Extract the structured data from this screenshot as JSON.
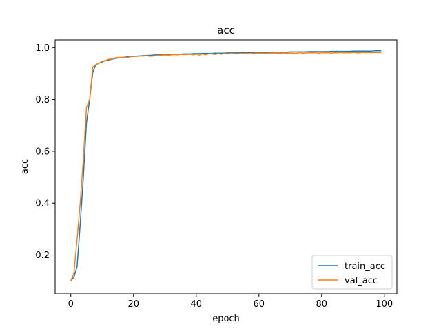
{
  "chart_data": {
    "type": "line",
    "title": "acc",
    "xlabel": "epoch",
    "ylabel": "acc",
    "xlim": [
      -5,
      104
    ],
    "ylim": [
      0.05,
      1.03
    ],
    "xticks": [
      0,
      20,
      40,
      60,
      80,
      100
    ],
    "yticks": [
      0.2,
      0.4,
      0.6,
      0.8,
      1.0
    ],
    "xtick_labels": [
      "0",
      "20",
      "40",
      "60",
      "80",
      "100"
    ],
    "ytick_labels": [
      "0.2",
      "0.4",
      "0.6",
      "0.8",
      "1.0"
    ],
    "grid": false,
    "legend_position": "lower-right",
    "series": [
      {
        "name": "train_acc",
        "color": "#1f77b4",
        "x": [
          0,
          1,
          2,
          3,
          4,
          5,
          6,
          7,
          8,
          9,
          10,
          11,
          12,
          13,
          14,
          15,
          16,
          17,
          18,
          19,
          20,
          21,
          22,
          23,
          24,
          25,
          26,
          27,
          28,
          29,
          30,
          31,
          32,
          33,
          34,
          35,
          36,
          37,
          38,
          39,
          40,
          41,
          42,
          43,
          44,
          45,
          46,
          47,
          48,
          49,
          50,
          51,
          52,
          53,
          54,
          55,
          56,
          57,
          58,
          59,
          60,
          61,
          62,
          63,
          64,
          65,
          66,
          67,
          68,
          69,
          70,
          71,
          72,
          73,
          74,
          75,
          76,
          77,
          78,
          79,
          80,
          81,
          82,
          83,
          84,
          85,
          86,
          87,
          88,
          89,
          90,
          91,
          92,
          93,
          94,
          95,
          96,
          97,
          98,
          99
        ],
        "y": [
          0.1,
          0.115,
          0.155,
          0.32,
          0.5,
          0.71,
          0.8,
          0.905,
          0.935,
          0.94,
          0.945,
          0.95,
          0.952,
          0.955,
          0.958,
          0.96,
          0.962,
          0.963,
          0.964,
          0.965,
          0.966,
          0.967,
          0.968,
          0.969,
          0.97,
          0.97,
          0.971,
          0.972,
          0.972,
          0.973,
          0.973,
          0.974,
          0.974,
          0.975,
          0.975,
          0.975,
          0.976,
          0.976,
          0.976,
          0.977,
          0.977,
          0.977,
          0.978,
          0.978,
          0.978,
          0.978,
          0.979,
          0.979,
          0.979,
          0.979,
          0.98,
          0.98,
          0.98,
          0.98,
          0.981,
          0.981,
          0.981,
          0.981,
          0.981,
          0.982,
          0.982,
          0.982,
          0.982,
          0.982,
          0.983,
          0.983,
          0.983,
          0.983,
          0.983,
          0.983,
          0.984,
          0.984,
          0.984,
          0.984,
          0.984,
          0.984,
          0.985,
          0.985,
          0.985,
          0.985,
          0.985,
          0.985,
          0.985,
          0.986,
          0.986,
          0.986,
          0.986,
          0.986,
          0.986,
          0.986,
          0.987,
          0.987,
          0.987,
          0.987,
          0.987,
          0.987,
          0.987,
          0.988,
          0.988,
          0.988
        ]
      },
      {
        "name": "val_acc",
        "color": "#ff7f0e",
        "x": [
          0,
          1,
          2,
          3,
          4,
          5,
          6,
          7,
          8,
          9,
          10,
          11,
          12,
          13,
          14,
          15,
          16,
          17,
          18,
          19,
          20,
          21,
          22,
          23,
          24,
          25,
          26,
          27,
          28,
          29,
          30,
          31,
          32,
          33,
          34,
          35,
          36,
          37,
          38,
          39,
          40,
          41,
          42,
          43,
          44,
          45,
          46,
          47,
          48,
          49,
          50,
          51,
          52,
          53,
          54,
          55,
          56,
          57,
          58,
          59,
          60,
          61,
          62,
          63,
          64,
          65,
          66,
          67,
          68,
          69,
          70,
          71,
          72,
          73,
          74,
          75,
          76,
          77,
          78,
          79,
          80,
          81,
          82,
          83,
          84,
          85,
          86,
          87,
          88,
          89,
          90,
          91,
          92,
          93,
          94,
          95,
          96,
          97,
          98,
          99
        ],
        "y": [
          0.1,
          0.13,
          0.26,
          0.4,
          0.57,
          0.77,
          0.8,
          0.925,
          0.935,
          0.94,
          0.948,
          0.95,
          0.955,
          0.956,
          0.96,
          0.962,
          0.962,
          0.963,
          0.96,
          0.966,
          0.967,
          0.966,
          0.968,
          0.967,
          0.969,
          0.967,
          0.967,
          0.969,
          0.97,
          0.971,
          0.972,
          0.971,
          0.972,
          0.973,
          0.972,
          0.974,
          0.973,
          0.973,
          0.975,
          0.972,
          0.975,
          0.971,
          0.976,
          0.972,
          0.976,
          0.976,
          0.974,
          0.977,
          0.975,
          0.977,
          0.976,
          0.978,
          0.977,
          0.976,
          0.978,
          0.977,
          0.979,
          0.976,
          0.978,
          0.979,
          0.977,
          0.979,
          0.978,
          0.979,
          0.978,
          0.98,
          0.978,
          0.979,
          0.98,
          0.978,
          0.98,
          0.979,
          0.978,
          0.981,
          0.979,
          0.98,
          0.981,
          0.98,
          0.981,
          0.979,
          0.981,
          0.98,
          0.981,
          0.979,
          0.981,
          0.98,
          0.982,
          0.98,
          0.981,
          0.98,
          0.982,
          0.981,
          0.98,
          0.982,
          0.981,
          0.982,
          0.981,
          0.982,
          0.981,
          0.982
        ]
      }
    ]
  }
}
